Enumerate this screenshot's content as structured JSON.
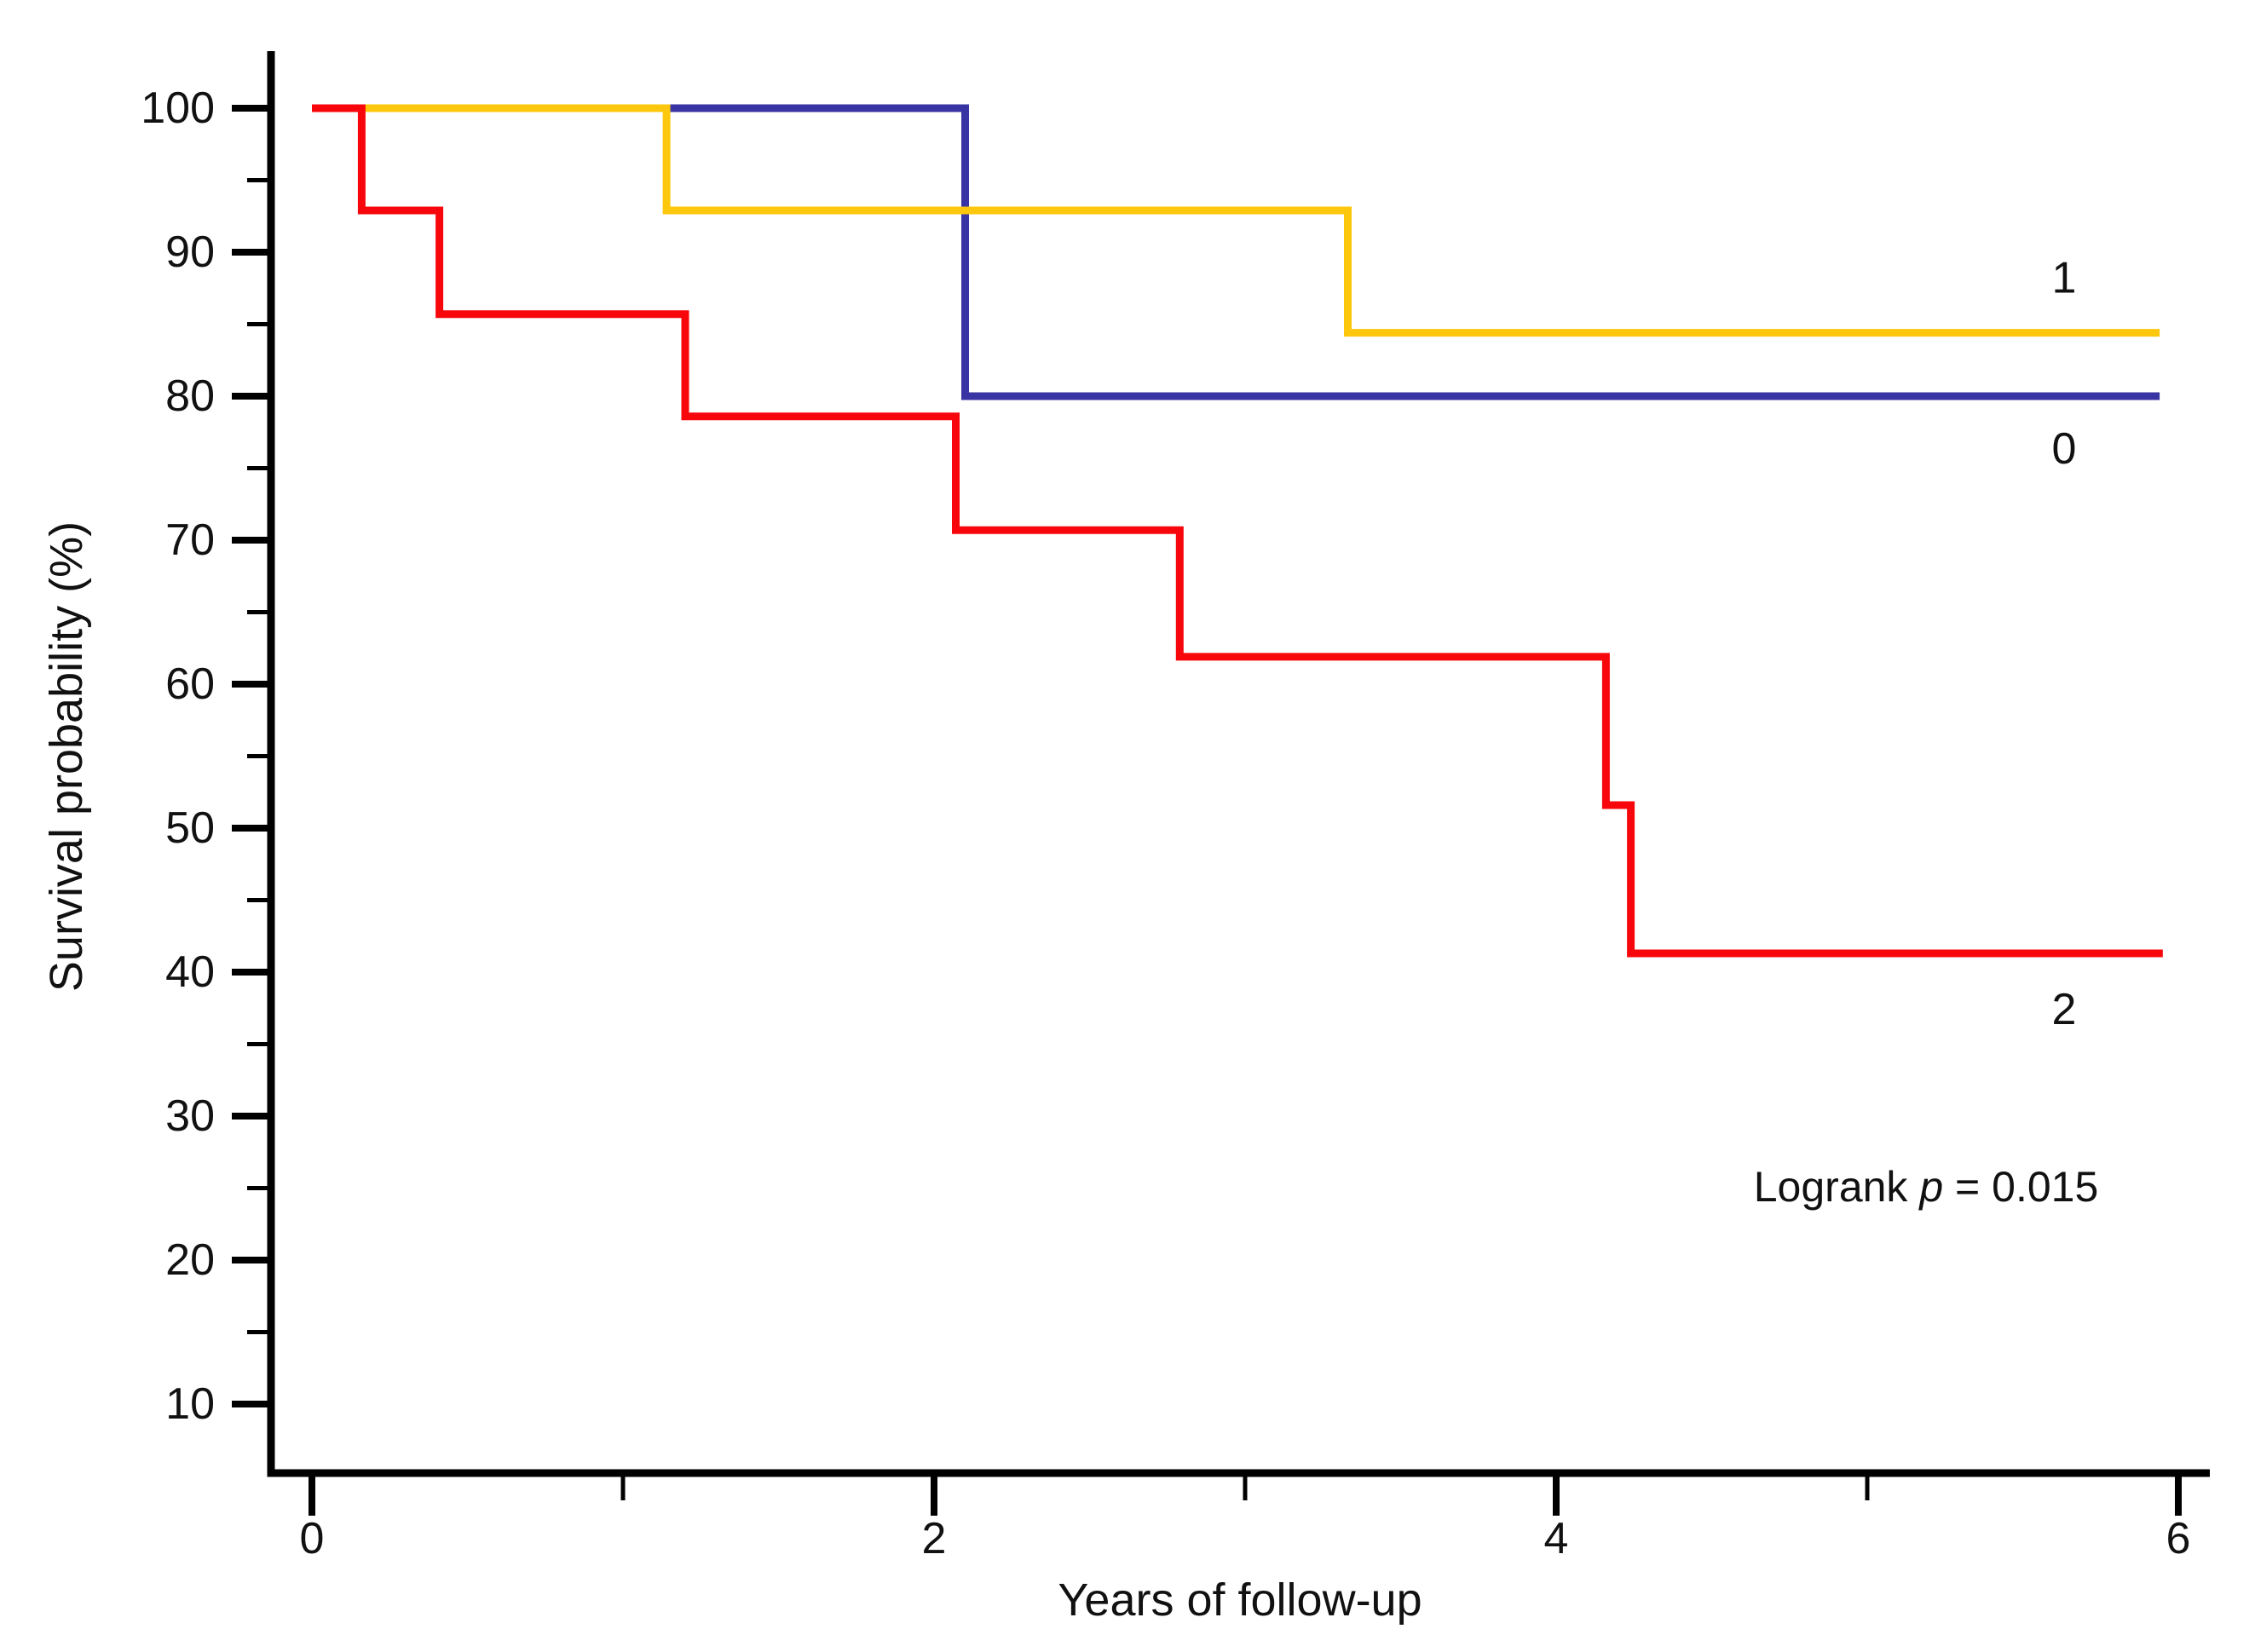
{
  "figure": {
    "y_axis": {
      "title": "Survival probability (%)"
    },
    "x_axis": {
      "title": "Years of follow-up"
    },
    "annotation": {
      "prefix": "Logrank ",
      "pvar": "p",
      "rest": " = 0.015"
    }
  },
  "chart_data": {
    "type": "line",
    "subtype": "kaplan-meier-step",
    "title": "",
    "xlabel": "Years of follow-up",
    "ylabel": "Survival probability (%)",
    "xlim": [
      0,
      6
    ],
    "ylim": [
      10,
      100
    ],
    "grid": false,
    "legend_position": "end-of-line-labels",
    "x_ticks": [
      0,
      2,
      4,
      6
    ],
    "x_minor_ticks": [
      1,
      3,
      5
    ],
    "y_ticks": [
      100,
      90,
      80,
      70,
      60,
      50,
      40,
      30,
      20,
      10
    ],
    "y_minor_ticks": [
      95,
      85,
      75,
      65,
      55,
      45,
      35,
      25,
      15
    ],
    "annotation": "Logrank p = 0.015",
    "axis_color": "#000000",
    "series": [
      {
        "name": "0",
        "label": "0",
        "color": "#3934A3",
        "points": [
          [
            0,
            100
          ],
          [
            2.1,
            100
          ],
          [
            2.1,
            80
          ],
          [
            5.94,
            80
          ]
        ]
      },
      {
        "name": "1",
        "label": "1",
        "color": "#FDC70D",
        "points": [
          [
            0,
            100
          ],
          [
            1.14,
            100
          ],
          [
            1.14,
            92.9
          ],
          [
            3.33,
            92.9
          ],
          [
            3.33,
            84.4
          ],
          [
            5.94,
            84.4
          ]
        ]
      },
      {
        "name": "2",
        "label": "2",
        "color": "#F7070C",
        "points": [
          [
            0,
            100
          ],
          [
            0.16,
            100
          ],
          [
            0.16,
            92.9
          ],
          [
            0.41,
            92.9
          ],
          [
            0.41,
            85.7
          ],
          [
            1.2,
            85.7
          ],
          [
            1.2,
            78.6
          ],
          [
            2.07,
            78.6
          ],
          [
            2.07,
            70.7
          ],
          [
            2.79,
            70.7
          ],
          [
            2.79,
            61.9
          ],
          [
            4.16,
            61.9
          ],
          [
            4.16,
            51.6
          ],
          [
            4.24,
            51.6
          ],
          [
            4.24,
            41.3
          ],
          [
            5.95,
            41.3
          ]
        ]
      }
    ]
  }
}
